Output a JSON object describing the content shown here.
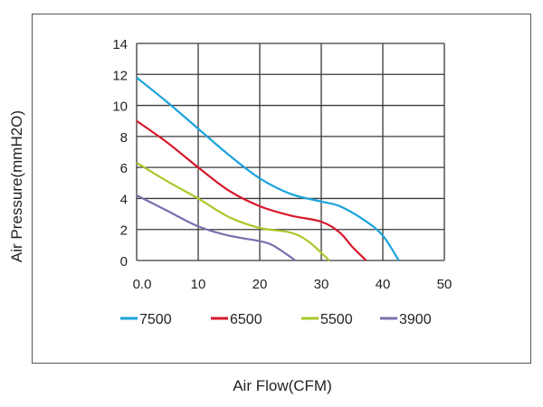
{
  "chart_data": {
    "type": "line",
    "title": "",
    "xlabel": "Air Flow(CFM)",
    "ylabel": "Air Pressure(mmH2O)",
    "xlim": [
      0,
      50
    ],
    "ylim": [
      0,
      14
    ],
    "grid": true,
    "x_ticks": [
      "0.0",
      "10",
      "20",
      "30",
      "40",
      "50"
    ],
    "x_tick_values": [
      0,
      10,
      20,
      30,
      40,
      50
    ],
    "y_ticks": [
      "0",
      "2",
      "4",
      "6",
      "8",
      "10",
      "12",
      "14"
    ],
    "y_tick_values": [
      0,
      2,
      4,
      6,
      8,
      10,
      12,
      14
    ],
    "legend_position": "bottom",
    "series": [
      {
        "name": "7500",
        "color": "#1aa3dc",
        "x": [
          0,
          5,
          10,
          15,
          20,
          25,
          30,
          33,
          37,
          40,
          42.6
        ],
        "y": [
          11.8,
          10.2,
          8.5,
          6.8,
          5.3,
          4.3,
          3.8,
          3.5,
          2.6,
          1.6,
          0
        ]
      },
      {
        "name": "6500",
        "color": "#d7182a",
        "x": [
          0,
          5,
          10,
          15,
          20,
          25,
          30,
          33,
          35,
          37.3
        ],
        "y": [
          9,
          7.6,
          6,
          4.5,
          3.5,
          2.9,
          2.5,
          1.8,
          0.9,
          0
        ]
      },
      {
        "name": "5500",
        "color": "#a8c92b",
        "x": [
          0,
          5,
          10,
          15,
          20,
          25,
          28,
          31.3
        ],
        "y": [
          6.3,
          5.1,
          4,
          2.8,
          2.1,
          1.8,
          1.2,
          0
        ]
      },
      {
        "name": "3900",
        "color": "#7b6fae",
        "x": [
          0,
          5,
          10,
          15,
          20,
          22,
          24,
          25.8
        ],
        "y": [
          4.2,
          3.2,
          2.2,
          1.6,
          1.25,
          1,
          0.5,
          0
        ]
      }
    ]
  }
}
